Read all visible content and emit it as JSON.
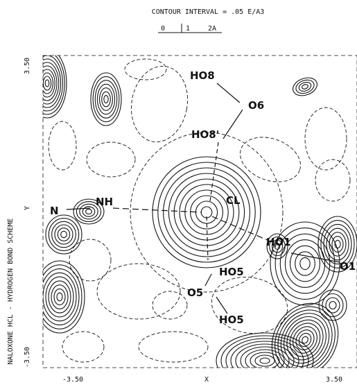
{
  "header": {
    "title": "CONTOUR INTERVAL = .05 E/A3",
    "scale": [
      "0",
      "1",
      "2A"
    ]
  },
  "axes": {
    "x_label": "X",
    "y_label": "Y",
    "x_ticks": [
      "-3.50",
      "3.50"
    ],
    "y_ticks": [
      "3.50",
      "-3.50"
    ]
  },
  "side_title": "NALOXONE HCL - HYDROGEN BOND SCHEME",
  "atoms": [
    "HO8",
    "O6",
    "HO8'",
    "NH",
    "N",
    "CL",
    "HO1",
    "O1",
    "HO5",
    "O5",
    "HO5"
  ]
}
